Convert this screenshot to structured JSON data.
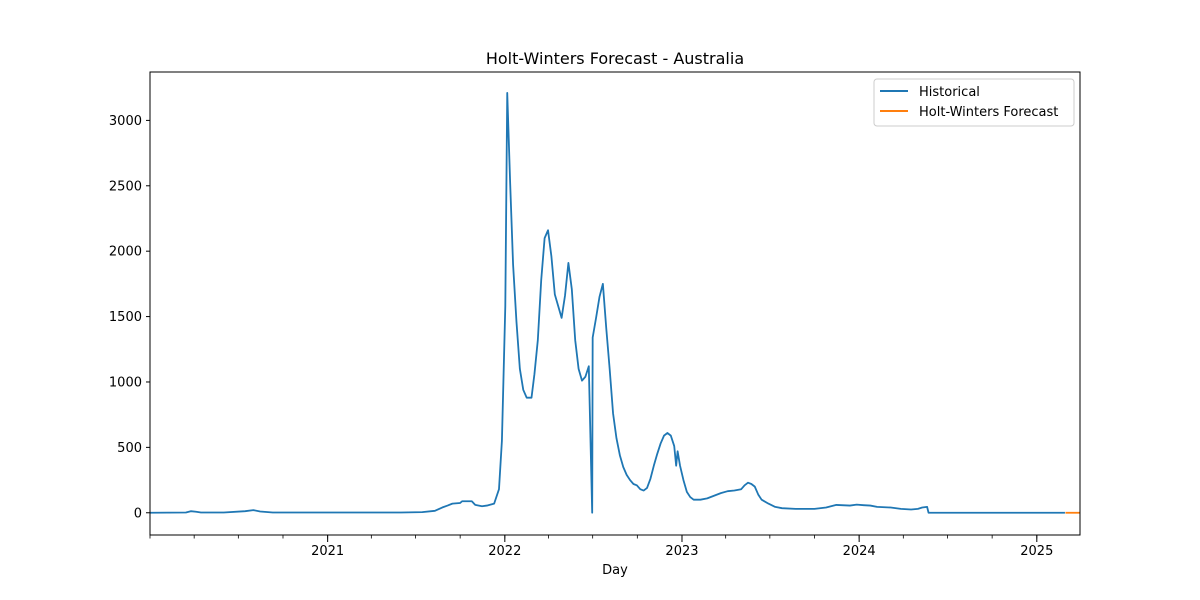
{
  "chart_data": {
    "type": "line",
    "title": "Holt-Winters Forecast - Australia",
    "xlabel": "Day",
    "ylabel": "",
    "x_axis_type": "date",
    "xlim": [
      "2020-01-01",
      "2025-03-31"
    ],
    "ylim": [
      -170,
      3370
    ],
    "y_ticks": [
      0,
      500,
      1000,
      1500,
      2000,
      2500,
      3000
    ],
    "x_ticks": [
      {
        "date": "2021-01-01",
        "label": "2021"
      },
      {
        "date": "2022-01-01",
        "label": "2022"
      },
      {
        "date": "2023-01-01",
        "label": "2023"
      },
      {
        "date": "2024-01-01",
        "label": "2024"
      },
      {
        "date": "2025-01-01",
        "label": "2025"
      }
    ],
    "grid": false,
    "legend": {
      "placement": "top-right"
    },
    "series": [
      {
        "name": "Historical",
        "color": "#1f77b4",
        "points": [
          [
            "2020-01-01",
            0
          ],
          [
            "2020-03-15",
            2
          ],
          [
            "2020-03-25",
            12
          ],
          [
            "2020-04-05",
            8
          ],
          [
            "2020-04-15",
            2
          ],
          [
            "2020-06-01",
            2
          ],
          [
            "2020-07-15",
            12
          ],
          [
            "2020-08-01",
            20
          ],
          [
            "2020-08-15",
            10
          ],
          [
            "2020-09-10",
            2
          ],
          [
            "2021-06-01",
            2
          ],
          [
            "2021-07-15",
            5
          ],
          [
            "2021-08-10",
            15
          ],
          [
            "2021-08-25",
            40
          ],
          [
            "2021-09-05",
            55
          ],
          [
            "2021-09-15",
            70
          ],
          [
            "2021-10-01",
            75
          ],
          [
            "2021-10-05",
            88
          ],
          [
            "2021-10-25",
            88
          ],
          [
            "2021-11-01",
            60
          ],
          [
            "2021-11-15",
            50
          ],
          [
            "2021-11-25",
            55
          ],
          [
            "2021-12-10",
            70
          ],
          [
            "2021-12-20",
            180
          ],
          [
            "2021-12-26",
            550
          ],
          [
            "2022-01-02",
            1580
          ],
          [
            "2022-01-06",
            3210
          ],
          [
            "2022-01-12",
            2520
          ],
          [
            "2022-01-18",
            1900
          ],
          [
            "2022-01-25",
            1460
          ],
          [
            "2022-02-01",
            1100
          ],
          [
            "2022-02-08",
            940
          ],
          [
            "2022-02-15",
            880
          ],
          [
            "2022-02-25",
            880
          ],
          [
            "2022-03-03",
            1060
          ],
          [
            "2022-03-10",
            1320
          ],
          [
            "2022-03-17",
            1780
          ],
          [
            "2022-03-24",
            2100
          ],
          [
            "2022-03-31",
            2160
          ],
          [
            "2022-04-07",
            1960
          ],
          [
            "2022-04-14",
            1670
          ],
          [
            "2022-04-21",
            1580
          ],
          [
            "2022-04-28",
            1490
          ],
          [
            "2022-05-05",
            1660
          ],
          [
            "2022-05-12",
            1910
          ],
          [
            "2022-05-19",
            1710
          ],
          [
            "2022-05-26",
            1320
          ],
          [
            "2022-06-02",
            1100
          ],
          [
            "2022-06-09",
            1010
          ],
          [
            "2022-06-16",
            1040
          ],
          [
            "2022-06-23",
            1120
          ],
          [
            "2022-06-30",
            0
          ],
          [
            "2022-07-01",
            1340
          ],
          [
            "2022-07-08",
            1490
          ],
          [
            "2022-07-15",
            1650
          ],
          [
            "2022-07-22",
            1750
          ],
          [
            "2022-07-29",
            1410
          ],
          [
            "2022-08-05",
            1100
          ],
          [
            "2022-08-12",
            760
          ],
          [
            "2022-08-19",
            570
          ],
          [
            "2022-08-26",
            440
          ],
          [
            "2022-09-02",
            350
          ],
          [
            "2022-09-09",
            290
          ],
          [
            "2022-09-16",
            250
          ],
          [
            "2022-09-23",
            220
          ],
          [
            "2022-09-30",
            210
          ],
          [
            "2022-10-07",
            180
          ],
          [
            "2022-10-14",
            170
          ],
          [
            "2022-10-21",
            190
          ],
          [
            "2022-10-28",
            260
          ],
          [
            "2022-11-04",
            360
          ],
          [
            "2022-11-11",
            450
          ],
          [
            "2022-11-18",
            530
          ],
          [
            "2022-11-25",
            590
          ],
          [
            "2022-12-02",
            610
          ],
          [
            "2022-12-09",
            590
          ],
          [
            "2022-12-16",
            510
          ],
          [
            "2022-12-20",
            360
          ],
          [
            "2022-12-23",
            470
          ],
          [
            "2022-12-28",
            360
          ],
          [
            "2023-01-04",
            250
          ],
          [
            "2023-01-11",
            160
          ],
          [
            "2023-01-18",
            120
          ],
          [
            "2023-01-25",
            100
          ],
          [
            "2023-02-08",
            100
          ],
          [
            "2023-02-22",
            110
          ],
          [
            "2023-03-08",
            130
          ],
          [
            "2023-03-22",
            150
          ],
          [
            "2023-04-05",
            165
          ],
          [
            "2023-04-19",
            170
          ],
          [
            "2023-05-03",
            180
          ],
          [
            "2023-05-10",
            210
          ],
          [
            "2023-05-17",
            230
          ],
          [
            "2023-05-24",
            220
          ],
          [
            "2023-05-31",
            200
          ],
          [
            "2023-06-07",
            140
          ],
          [
            "2023-06-14",
            100
          ],
          [
            "2023-06-28",
            70
          ],
          [
            "2023-07-12",
            45
          ],
          [
            "2023-07-26",
            35
          ],
          [
            "2023-08-23",
            30
          ],
          [
            "2023-10-01",
            30
          ],
          [
            "2023-10-25",
            40
          ],
          [
            "2023-11-15",
            60
          ],
          [
            "2023-12-13",
            55
          ],
          [
            "2023-12-27",
            62
          ],
          [
            "2024-01-10",
            58
          ],
          [
            "2024-01-24",
            55
          ],
          [
            "2024-02-07",
            45
          ],
          [
            "2024-03-06",
            40
          ],
          [
            "2024-03-27",
            30
          ],
          [
            "2024-04-17",
            25
          ],
          [
            "2024-05-01",
            30
          ],
          [
            "2024-05-10",
            40
          ],
          [
            "2024-05-20",
            45
          ],
          [
            "2024-05-23",
            0
          ],
          [
            "2025-02-28",
            0
          ]
        ]
      },
      {
        "name": "Holt-Winters Forecast",
        "color": "#ff7f0e",
        "points": [
          [
            "2025-03-01",
            0
          ],
          [
            "2025-03-31",
            0
          ]
        ]
      }
    ]
  }
}
